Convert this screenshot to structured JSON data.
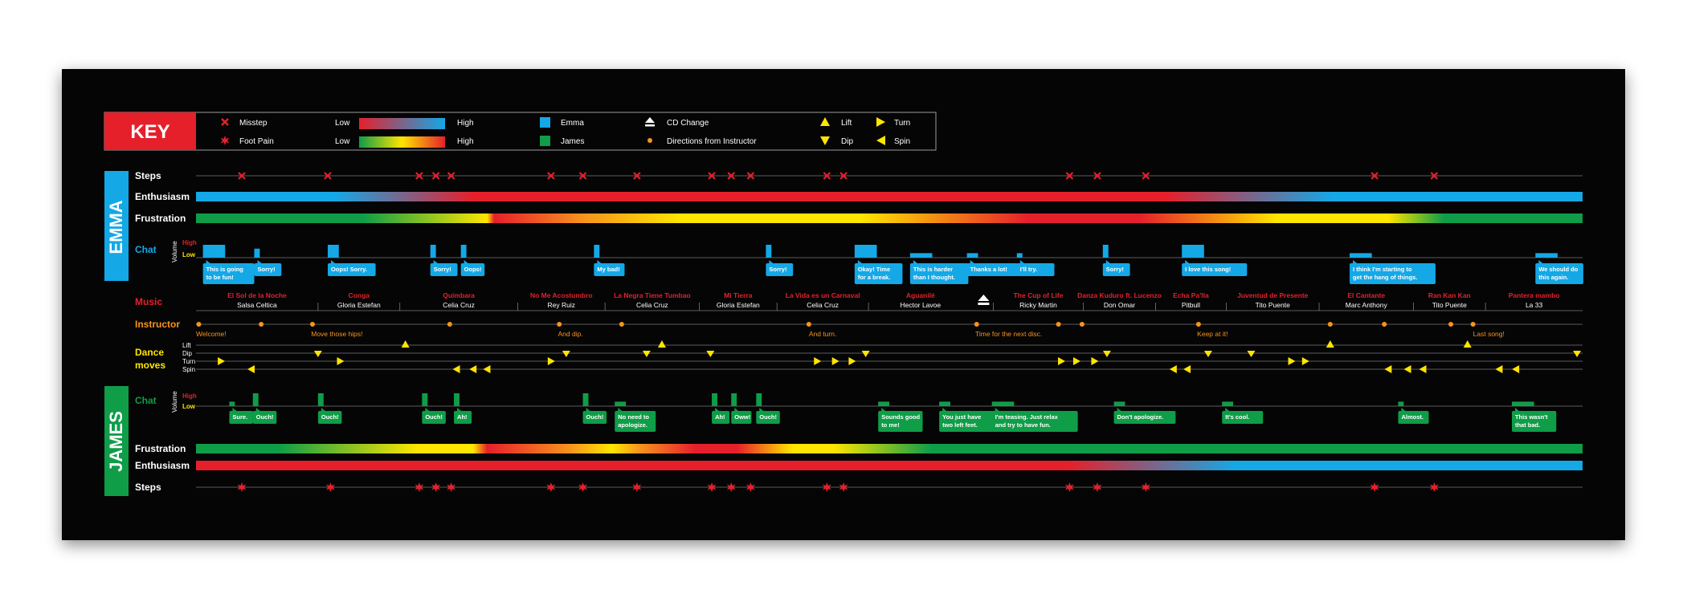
{
  "key": {
    "title": "KEY",
    "misstep": "Misstep",
    "foot_pain": "Foot Pain",
    "low": "Low",
    "high": "High",
    "emma": "Emma",
    "james": "James",
    "cd_change": "CD Change",
    "directions": "Directions from Instructor",
    "lift": "Lift",
    "dip": "Dip",
    "turn": "Turn",
    "spin": "Spin"
  },
  "colors": {
    "red": "#e5202b",
    "blue": "#14a8e6",
    "green": "#0f9d48",
    "yellow": "#ffe500",
    "orange": "#f7941d",
    "line": "#7a7a7a"
  },
  "emma": {
    "name": "EMMA",
    "steps_label": "Steps",
    "enthusiasm_label": "Enthusiasm",
    "frustration_label": "Frustration",
    "chat_label": "Chat",
    "volume_label": "Volume",
    "high": "High",
    "low": "Low",
    "missteps": [
      0.033,
      0.095,
      0.161,
      0.173,
      0.184,
      0.256,
      0.279,
      0.318,
      0.372,
      0.386,
      0.4,
      0.455,
      0.467,
      0.63,
      0.65,
      0.685,
      0.85,
      0.893
    ],
    "enthusiasm_stops": [
      [
        0,
        "#14a8e6"
      ],
      [
        0.1,
        "#14a8e6"
      ],
      [
        0.2,
        "#e5202b"
      ],
      [
        0.6,
        "#e5202b"
      ],
      [
        0.7,
        "#e5202b"
      ],
      [
        0.82,
        "#14a8e6"
      ],
      [
        1,
        "#14a8e6"
      ]
    ],
    "frustration_stops": [
      [
        0,
        "#0f9d48"
      ],
      [
        0.12,
        "#0f9d48"
      ],
      [
        0.21,
        "#ffe500"
      ],
      [
        0.215,
        "#e5202b"
      ],
      [
        0.28,
        "#f7941d"
      ],
      [
        0.35,
        "#ffe500"
      ],
      [
        0.48,
        "#ffe500"
      ],
      [
        0.6,
        "#e5202b"
      ],
      [
        0.68,
        "#e5202b"
      ],
      [
        0.78,
        "#ffe500"
      ],
      [
        0.86,
        "#ffe500"
      ],
      [
        0.9,
        "#0f9d48"
      ],
      [
        1,
        "#0f9d48"
      ]
    ],
    "chat": [
      {
        "x": 0.005,
        "w": 0.016,
        "level": 1.0,
        "text": "This is going|to be fun!"
      },
      {
        "x": 0.042,
        "w": 0.004,
        "level": 0.7,
        "text": "Sorry!"
      },
      {
        "x": 0.095,
        "w": 0.008,
        "level": 1.0,
        "text": "Oops! Sorry."
      },
      {
        "x": 0.169,
        "w": 0.004,
        "level": 1.0,
        "text": "Sorry!"
      },
      {
        "x": 0.191,
        "w": 0.004,
        "level": 1.0,
        "text": "Oops!"
      },
      {
        "x": 0.287,
        "w": 0.004,
        "level": 1.0,
        "text": "My bad!"
      },
      {
        "x": 0.411,
        "w": 0.004,
        "level": 1.0,
        "text": "Sorry!"
      },
      {
        "x": 0.475,
        "w": 0.016,
        "level": 1.0,
        "text": "Okay! Time|for a break."
      },
      {
        "x": 0.515,
        "w": 0.016,
        "level": 0.35,
        "text": "This is harder|than I thought."
      },
      {
        "x": 0.556,
        "w": 0.008,
        "level": 0.35,
        "text": "Thanks a lot!"
      },
      {
        "x": 0.592,
        "w": 0.004,
        "level": 0.35,
        "text": "I'll try."
      },
      {
        "x": 0.654,
        "w": 0.004,
        "level": 1.0,
        "text": "Sorry!"
      },
      {
        "x": 0.711,
        "w": 0.016,
        "level": 1.0,
        "text": "I love this song!"
      },
      {
        "x": 0.832,
        "w": 0.016,
        "level": 0.35,
        "text": "I think I'm starting to|get the hang of things."
      },
      {
        "x": 0.966,
        "w": 0.016,
        "level": 0.35,
        "text": "We should do|this again."
      }
    ]
  },
  "music": {
    "label": "Music",
    "songs": [
      {
        "title": "El Sol de la Noche",
        "artist": "Salsa Celtica",
        "start": 0,
        "end": 0.088
      },
      {
        "title": "Conga",
        "artist": "Gloria Estefan",
        "start": 0.088,
        "end": 0.147
      },
      {
        "title": "Quimbara",
        "artist": "Celia Cruz",
        "start": 0.147,
        "end": 0.232
      },
      {
        "title": "No Me Acostumbro",
        "artist": "Rey Ruiz",
        "start": 0.232,
        "end": 0.295
      },
      {
        "title": "La Negra Tiene Tumbao",
        "artist": "Celia Cruz",
        "start": 0.295,
        "end": 0.363
      },
      {
        "title": "Mi Tierra",
        "artist": "Gloria Estefan",
        "start": 0.363,
        "end": 0.419
      },
      {
        "title": "La Vida es un Carnaval",
        "artist": "Celia Cruz",
        "start": 0.419,
        "end": 0.485
      },
      {
        "title": "Aguanilé",
        "artist": "Hector Lavoe",
        "start": 0.485,
        "end": 0.56
      },
      {
        "title": "The Cup of Life",
        "artist": "Ricky Martin",
        "start": 0.575,
        "end": 0.64
      },
      {
        "title": "Danza Kuduro ft. Lucenzo",
        "artist": "Don Omar",
        "start": 0.64,
        "end": 0.692
      },
      {
        "title": "Echa Pa'lla",
        "artist": "Pitbull",
        "start": 0.692,
        "end": 0.743
      },
      {
        "title": "Juventud de Presente",
        "artist": "Tito Puente",
        "start": 0.743,
        "end": 0.81
      },
      {
        "title": "El Cantante",
        "artist": "Marc Anthony",
        "start": 0.81,
        "end": 0.878
      },
      {
        "title": "Ran Kan Kan",
        "artist": "Tito Puente",
        "start": 0.878,
        "end": 0.93
      },
      {
        "title": "Pantera mambo",
        "artist": "La 33",
        "start": 0.93,
        "end": 1
      }
    ],
    "cd_change_at": 0.568
  },
  "instructor": {
    "label": "Instructor",
    "dots": [
      0.002,
      0.047,
      0.084,
      0.183,
      0.262,
      0.307,
      0.442,
      0.563,
      0.622,
      0.639,
      0.723,
      0.818,
      0.857,
      0.905,
      0.921
    ],
    "directions": [
      {
        "x": 0.0,
        "text": "Welcome!"
      },
      {
        "x": 0.083,
        "text": "Move those hips!"
      },
      {
        "x": 0.261,
        "text": "And dip."
      },
      {
        "x": 0.442,
        "text": "And turn."
      },
      {
        "x": 0.562,
        "text": "Time for the next disc."
      },
      {
        "x": 0.722,
        "text": "Keep at it!"
      },
      {
        "x": 0.921,
        "text": "Last song!"
      }
    ]
  },
  "dance": {
    "label_line1": "Dance",
    "label_line2": "moves",
    "row_labels": [
      "Lift",
      "Dip",
      "Turn",
      "Spin"
    ],
    "lifts": [
      0.151,
      0.336,
      0.818,
      0.917
    ],
    "dips": [
      0.088,
      0.267,
      0.325,
      0.371,
      0.483,
      0.657,
      0.73,
      0.761,
      0.996
    ],
    "turns": [
      0.018,
      0.104,
      0.256,
      0.448,
      0.461,
      0.473,
      0.624,
      0.635,
      0.648,
      0.79,
      0.8
    ],
    "spins": [
      0.04,
      0.188,
      0.2,
      0.21,
      0.705,
      0.715,
      0.86,
      0.874,
      0.885,
      0.94,
      0.952
    ]
  },
  "james": {
    "name": "JAMES",
    "steps_label": "Steps",
    "enthusiasm_label": "Enthusiasm",
    "frustration_label": "Frustration",
    "chat_label": "Chat",
    "volume_label": "Volume",
    "high": "High",
    "low": "Low",
    "foot_pain": [
      0.033,
      0.097,
      0.161,
      0.173,
      0.184,
      0.256,
      0.279,
      0.318,
      0.372,
      0.386,
      0.4,
      0.455,
      0.467,
      0.63,
      0.65,
      0.685,
      0.85,
      0.893
    ],
    "enthusiasm_stops": [
      [
        0,
        "#e5202b"
      ],
      [
        0.6,
        "#e5202b"
      ],
      [
        0.63,
        "#e5202b"
      ],
      [
        0.75,
        "#14a8e6"
      ],
      [
        1,
        "#14a8e6"
      ]
    ],
    "frustration_stops": [
      [
        0,
        "#0f9d48"
      ],
      [
        0.06,
        "#0f9d48"
      ],
      [
        0.16,
        "#ffe500"
      ],
      [
        0.2,
        "#ffe500"
      ],
      [
        0.21,
        "#e5202b"
      ],
      [
        0.27,
        "#f7941d"
      ],
      [
        0.3,
        "#ffe500"
      ],
      [
        0.32,
        "#f7941d"
      ],
      [
        0.36,
        "#e5202b"
      ],
      [
        0.39,
        "#e5202b"
      ],
      [
        0.43,
        "#ffe500"
      ],
      [
        0.46,
        "#ffe500"
      ],
      [
        0.53,
        "#0f9d48"
      ],
      [
        1,
        "#0f9d48"
      ]
    ],
    "chat": [
      {
        "x": 0.024,
        "w": 0.004,
        "level": 0.35,
        "text": "Sure."
      },
      {
        "x": 0.041,
        "w": 0.004,
        "level": 1.0,
        "text": "Ouch!"
      },
      {
        "x": 0.088,
        "w": 0.004,
        "level": 1.0,
        "text": "Ouch!"
      },
      {
        "x": 0.163,
        "w": 0.004,
        "level": 1.0,
        "text": "Ouch!"
      },
      {
        "x": 0.186,
        "w": 0.004,
        "level": 1.0,
        "text": "Ah!"
      },
      {
        "x": 0.279,
        "w": 0.004,
        "level": 1.0,
        "text": "Ouch!"
      },
      {
        "x": 0.302,
        "w": 0.008,
        "level": 0.35,
        "text": "No need to|apologize."
      },
      {
        "x": 0.372,
        "w": 0.004,
        "level": 1.0,
        "text": "Ah!"
      },
      {
        "x": 0.386,
        "w": 0.004,
        "level": 1.0,
        "text": "Oww!"
      },
      {
        "x": 0.404,
        "w": 0.004,
        "level": 1.0,
        "text": "Ouch!"
      },
      {
        "x": 0.492,
        "w": 0.008,
        "level": 0.35,
        "text": "Sounds good|to me!"
      },
      {
        "x": 0.536,
        "w": 0.008,
        "level": 0.35,
        "text": "You just have|two left feet."
      },
      {
        "x": 0.574,
        "w": 0.016,
        "level": 0.35,
        "text": "I'm teasing. Just relax|and try to have fun."
      },
      {
        "x": 0.662,
        "w": 0.008,
        "level": 0.35,
        "text": "Don't apologize."
      },
      {
        "x": 0.74,
        "w": 0.008,
        "level": 0.35,
        "text": "It's cool."
      },
      {
        "x": 0.867,
        "w": 0.004,
        "level": 0.35,
        "text": "Almost."
      },
      {
        "x": 0.949,
        "w": 0.016,
        "level": 0.35,
        "text": "This wasn't|that bad."
      }
    ]
  }
}
